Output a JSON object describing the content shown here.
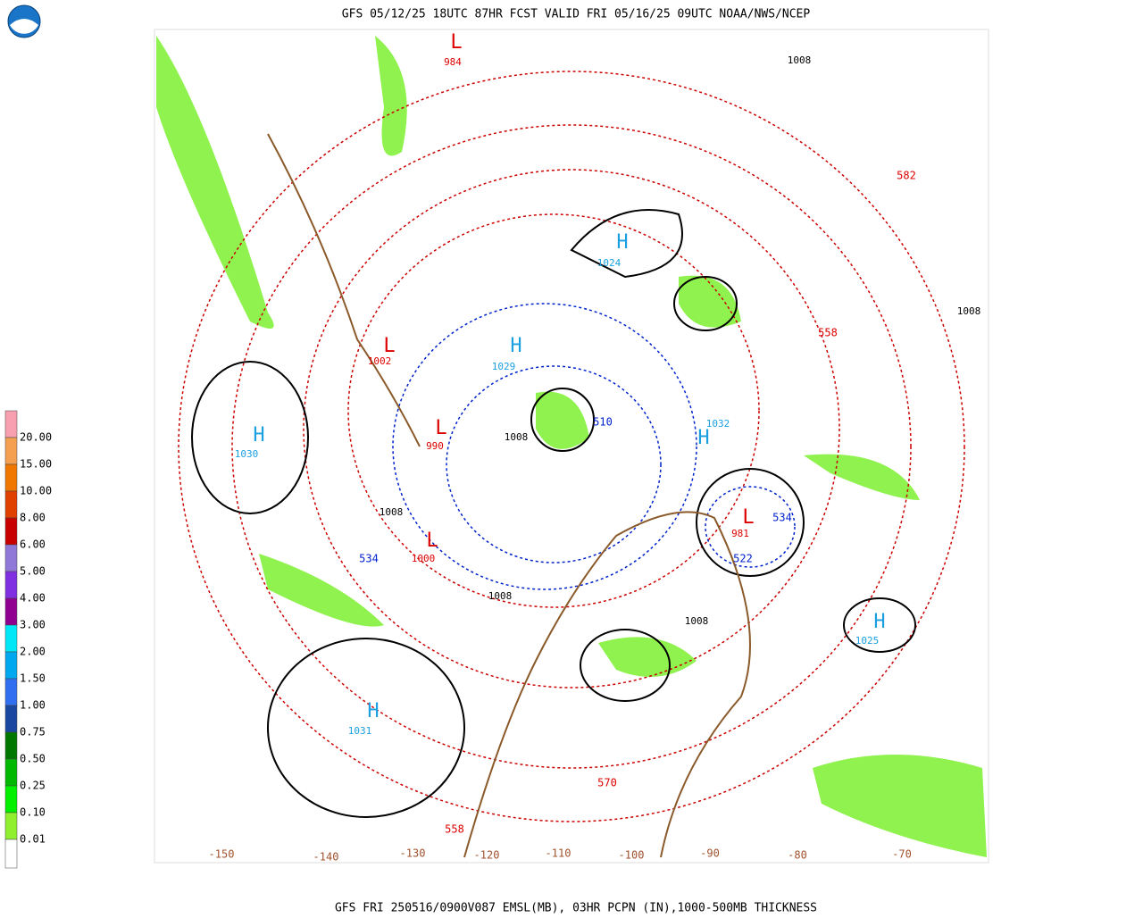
{
  "header": {
    "title": "GFS 05/12/25 18UTC 87HR FCST VALID FRI 05/16/25 09UTC NOAA/NWS/NCEP"
  },
  "footer": {
    "caption": "GFS FRI 250516/0900V087 EMSL(MB), 03HR PCPN (IN),1000-500MB THICKNESS"
  },
  "legend": {
    "items": [
      {
        "label": "20.00",
        "color": "#f8a0b0"
      },
      {
        "label": "15.00",
        "color": "#f5a050"
      },
      {
        "label": "10.00",
        "color": "#f07800"
      },
      {
        "label": "8.00",
        "color": "#e04000"
      },
      {
        "label": "6.00",
        "color": "#c80000"
      },
      {
        "label": "5.00",
        "color": "#9078d8"
      },
      {
        "label": "4.00",
        "color": "#8030e0"
      },
      {
        "label": "3.00",
        "color": "#900090"
      },
      {
        "label": "2.00",
        "color": "#00e8f8"
      },
      {
        "label": "1.50",
        "color": "#00a8f0"
      },
      {
        "label": "1.00",
        "color": "#3070f0"
      },
      {
        "label": "0.75",
        "color": "#1848a0"
      },
      {
        "label": "0.50",
        "color": "#007800"
      },
      {
        "label": "0.25",
        "color": "#00b800"
      },
      {
        "label": "0.10",
        "color": "#00f000"
      },
      {
        "label": "0.01",
        "color": "#90f030"
      }
    ],
    "base_color": "#ffffff"
  },
  "map": {
    "longitudes": [
      "-150",
      "-140",
      "-130",
      "-120",
      "-110",
      "-100",
      "-90",
      "-80",
      "-70"
    ],
    "centers": [
      {
        "letter": "H",
        "value": "1030"
      },
      {
        "letter": "H",
        "value": "1031"
      },
      {
        "letter": "H",
        "value": "1025"
      },
      {
        "letter": "H",
        "value": "1032"
      },
      {
        "letter": "H",
        "value": "1024"
      },
      {
        "letter": "H",
        "value": "1029"
      },
      {
        "letter": "L",
        "value": "981"
      },
      {
        "letter": "L",
        "value": "990"
      },
      {
        "letter": "L",
        "value": "1000"
      },
      {
        "letter": "L",
        "value": "1002"
      },
      {
        "letter": "L",
        "value": "984"
      }
    ],
    "isobar_labels": [
      "1008",
      "1008",
      "1008",
      "1008",
      "1008",
      "1008"
    ],
    "thickness_labels_warm": [
      "570",
      "558",
      "582",
      "558"
    ],
    "thickness_labels_cold": [
      "534",
      "510",
      "522",
      "534"
    ]
  }
}
